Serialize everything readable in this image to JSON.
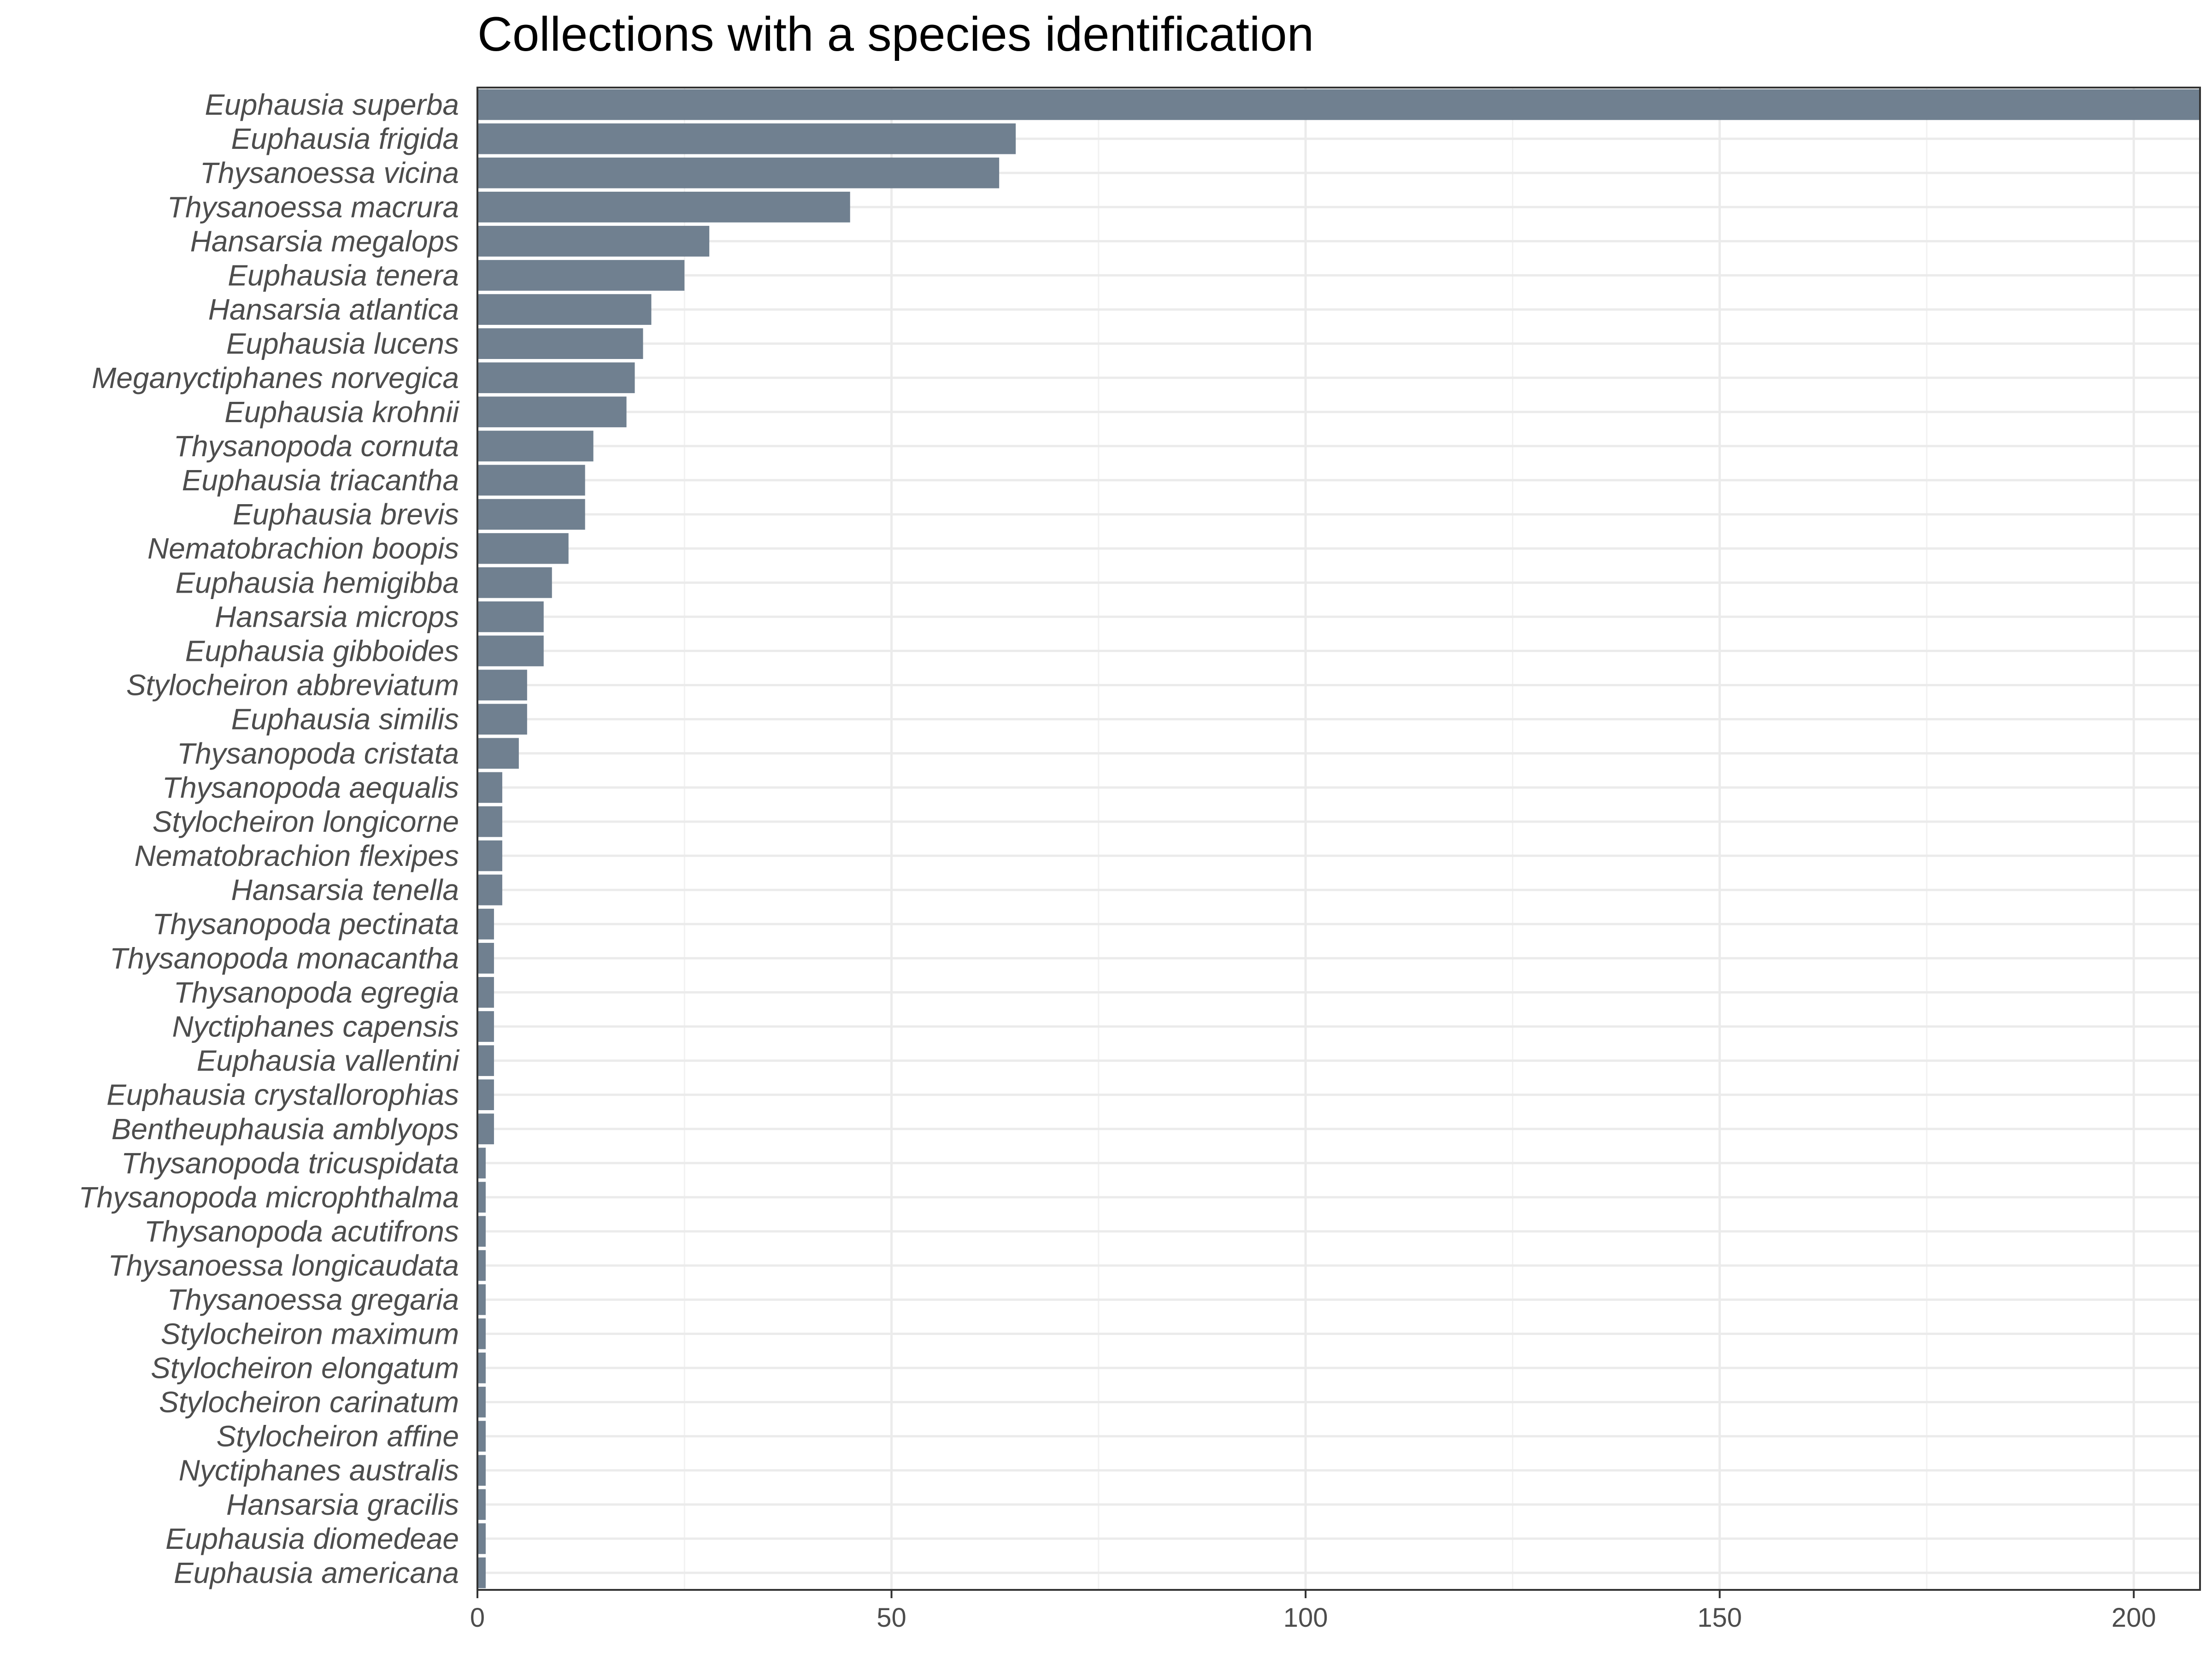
{
  "chart_data": {
    "type": "bar",
    "orientation": "horizontal",
    "title": "Collections with a species identification",
    "xlabel": "",
    "ylabel": "",
    "xlim": [
      0,
      208
    ],
    "x_ticks": [
      0,
      50,
      100,
      150,
      200
    ],
    "grid": true,
    "bar_color": "#708090",
    "categories": [
      "Euphausia superba",
      "Euphausia frigida",
      "Thysanoessa vicina",
      "Thysanoessa macrura",
      "Hansarsia megalops",
      "Euphausia tenera",
      "Hansarsia atlantica",
      "Euphausia lucens",
      "Meganyctiphanes norvegica",
      "Euphausia krohnii",
      "Thysanopoda cornuta",
      "Euphausia triacantha",
      "Euphausia brevis",
      "Nematobrachion boopis",
      "Euphausia hemigibba",
      "Hansarsia microps",
      "Euphausia gibboides",
      "Stylocheiron abbreviatum",
      "Euphausia similis",
      "Thysanopoda cristata",
      "Thysanopoda aequalis",
      "Stylocheiron longicorne",
      "Nematobrachion flexipes",
      "Hansarsia tenella",
      "Thysanopoda pectinata",
      "Thysanopoda monacantha",
      "Thysanopoda egregia",
      "Nyctiphanes capensis",
      "Euphausia vallentini",
      "Euphausia crystallorophias",
      "Bentheuphausia amblyops",
      "Thysanopoda tricuspidata",
      "Thysanopoda microphthalma",
      "Thysanopoda acutifrons",
      "Thysanoessa longicaudata",
      "Thysanoessa gregaria",
      "Stylocheiron maximum",
      "Stylocheiron elongatum",
      "Stylocheiron carinatum",
      "Stylocheiron affine",
      "Nyctiphanes australis",
      "Hansarsia gracilis",
      "Euphausia diomedeae",
      "Euphausia americana"
    ],
    "values": [
      208,
      65,
      63,
      45,
      28,
      25,
      21,
      20,
      19,
      18,
      14,
      13,
      13,
      11,
      9,
      8,
      8,
      6,
      6,
      5,
      3,
      3,
      3,
      3,
      2,
      2,
      2,
      2,
      2,
      2,
      2,
      1,
      1,
      1,
      1,
      1,
      1,
      1,
      1,
      1,
      1,
      1,
      1,
      1
    ]
  }
}
